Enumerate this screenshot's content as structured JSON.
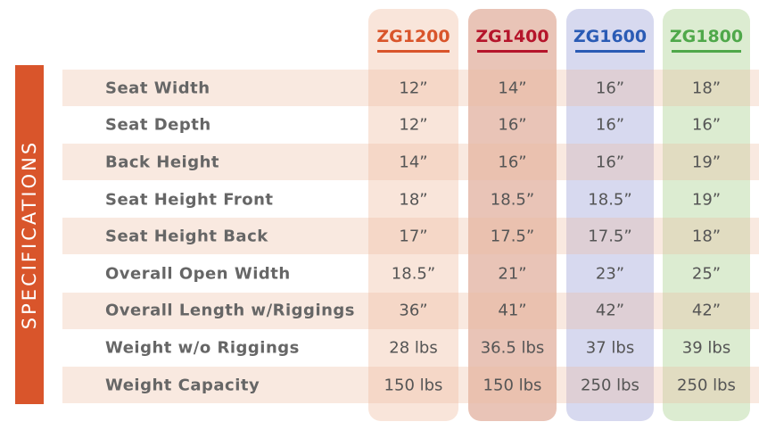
{
  "side_label": "SPECIFICATIONS",
  "columns": [
    "ZG1200",
    "ZG1400",
    "ZG1600",
    "ZG1800"
  ],
  "rows": [
    {
      "label": "Seat Width",
      "values": [
        "12”",
        "14”",
        "16”",
        "18”"
      ]
    },
    {
      "label": "Seat Depth",
      "values": [
        "12”",
        "16”",
        "16”",
        "16”"
      ]
    },
    {
      "label": "Back Height",
      "values": [
        "14”",
        "16”",
        "16”",
        "19”"
      ]
    },
    {
      "label": "Seat Height Front",
      "values": [
        "18”",
        "18.5”",
        "18.5”",
        "19”"
      ]
    },
    {
      "label": "Seat Height Back",
      "values": [
        "17”",
        "17.5”",
        "17.5”",
        "18”"
      ]
    },
    {
      "label": "Overall Open Width",
      "values": [
        "18.5”",
        "21”",
        "23”",
        "25”"
      ]
    },
    {
      "label": "Overall Length w/Riggings",
      "values": [
        "36”",
        "41”",
        "42”",
        "42”"
      ]
    },
    {
      "label": "Weight w/o Riggings",
      "values": [
        "28 lbs",
        "36.5 lbs",
        "37 lbs",
        "39 lbs"
      ]
    },
    {
      "label": "Weight Capacity",
      "values": [
        "150 lbs",
        "150 lbs",
        "250 lbs",
        "250 lbs"
      ]
    }
  ]
}
